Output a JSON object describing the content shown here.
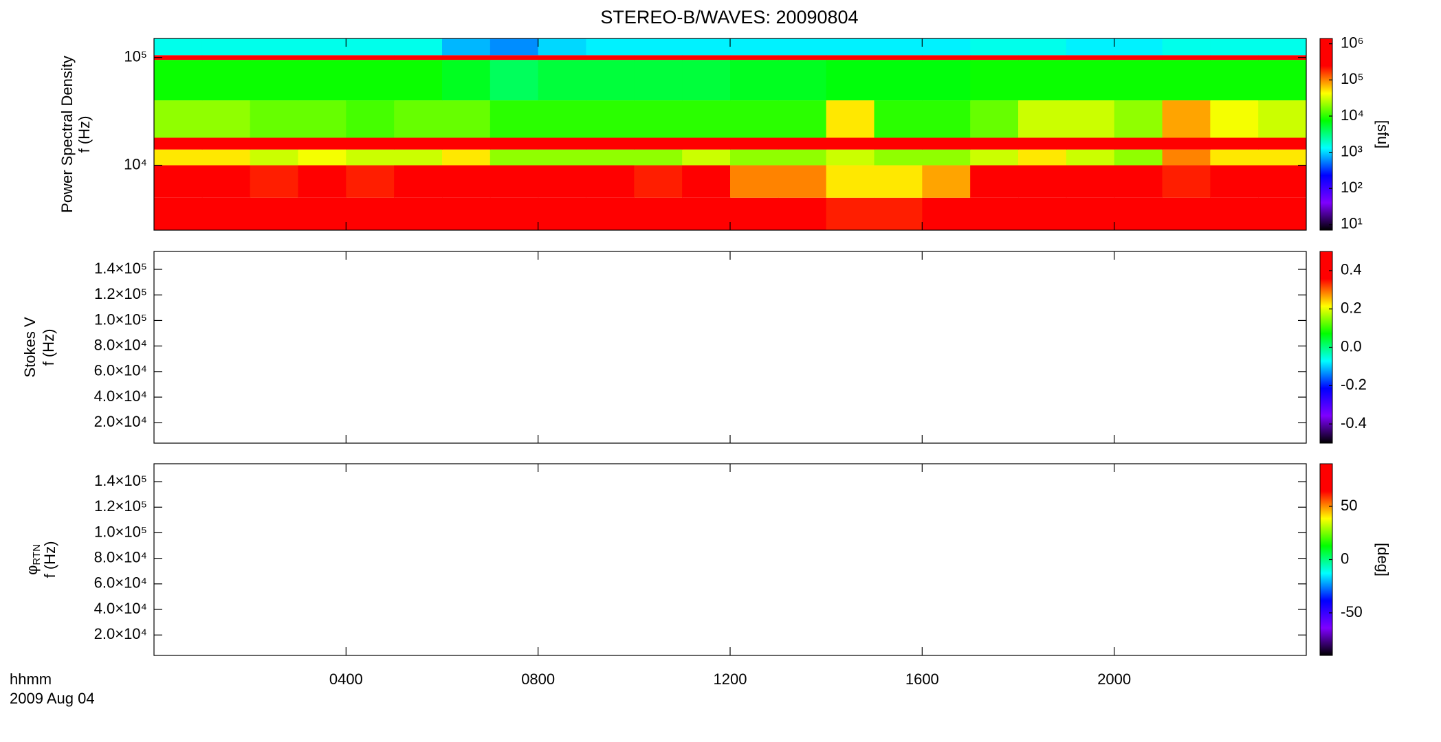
{
  "title": "STEREO-B/WAVES: 20090804",
  "x_label": "hhmm",
  "date_label": "2009 Aug 04",
  "chart_data": [
    {
      "type": "heatmap",
      "ylabel": "Power Spectral Density",
      "ylabel2": "f (Hz)",
      "ylog": true,
      "ylim": [
        2500,
        150000
      ],
      "yticks": [
        {
          "value": 10000,
          "label": "10⁴"
        },
        {
          "value": 100000,
          "label": "10⁵"
        }
      ],
      "x_edges": [
        0,
        1,
        2,
        3,
        4,
        5,
        6,
        7,
        8,
        9,
        10,
        11,
        12,
        13,
        14,
        15,
        16,
        17,
        18,
        19,
        20,
        21,
        22,
        23,
        24
      ],
      "y_edges": [
        2500,
        5000,
        10000,
        14000,
        18000,
        40000,
        95000,
        105000,
        150000
      ],
      "z": [
        [
          1000000,
          1000000,
          1000000,
          1000000,
          1000000,
          1000000,
          1000000,
          1000000,
          1000000,
          1000000,
          1000000,
          1000000,
          1000000,
          300000,
          200000,
          200000,
          300000,
          1000000,
          1000000,
          1000000,
          1000000,
          1000000,
          1000000,
          1000000
        ],
        [
          300000,
          300000,
          200000,
          300000,
          200000,
          300000,
          1000000,
          1000000,
          1000000,
          300000,
          200000,
          300000,
          100000,
          100000,
          50000,
          50000,
          80000,
          300000,
          1000000,
          300000,
          300000,
          200000,
          1000000,
          500000
        ],
        [
          50000,
          50000,
          30000,
          40000,
          30000,
          30000,
          50000,
          20000,
          20000,
          20000,
          20000,
          30000,
          20000,
          20000,
          30000,
          20000,
          20000,
          30000,
          50000,
          30000,
          20000,
          100000,
          50000,
          50000
        ],
        [
          1000000,
          1000000,
          1000000,
          1000000,
          1000000,
          1000000,
          1000000,
          1000000,
          1000000,
          1000000,
          1000000,
          1000000,
          1000000,
          1000000,
          1000000,
          1000000,
          1000000,
          1000000,
          1000000,
          1000000,
          1000000,
          1000000,
          1000000,
          1000000
        ],
        [
          20000,
          20000,
          15000,
          15000,
          12000,
          15000,
          15000,
          10000,
          10000,
          10000,
          10000,
          10000,
          10000,
          10000,
          50000,
          10000,
          10000,
          15000,
          30000,
          30000,
          20000,
          80000,
          40000,
          30000
        ],
        [
          8000,
          8000,
          8000,
          8000,
          8000,
          8000,
          6000,
          4000,
          5000,
          5000,
          5000,
          5000,
          6000,
          6000,
          7000,
          7000,
          7000,
          8000,
          8000,
          8000,
          8000,
          8000,
          8000,
          8000
        ],
        [
          1000000,
          1000000,
          1000000,
          1000000,
          1000000,
          1000000,
          1000000,
          1000000,
          1000000,
          1000000,
          1000000,
          1000000,
          1000000,
          1000000,
          1000000,
          1000000,
          1000000,
          1000000,
          1000000,
          1000000,
          1000000,
          1000000,
          1000000,
          1000000
        ],
        [
          1500,
          1500,
          1500,
          1500,
          1500,
          1500,
          800,
          600,
          1000,
          1200,
          1200,
          1200,
          1200,
          1200,
          1200,
          1200,
          1200,
          1500,
          1500,
          1200,
          1200,
          1500,
          1500,
          1500
        ]
      ],
      "zlog": true,
      "zlim": [
        7,
        1400000
      ],
      "zticks": [
        {
          "value": 10,
          "label": "10¹"
        },
        {
          "value": 100,
          "label": "10²"
        },
        {
          "value": 1000,
          "label": "10³"
        },
        {
          "value": 10000,
          "label": "10⁴"
        },
        {
          "value": 100000,
          "label": "10⁵"
        },
        {
          "value": 1000000,
          "label": "10⁶"
        }
      ],
      "zlabel": "[sfu]",
      "colormap": [
        "#000000",
        "#7f00ff",
        "#0000ff",
        "#00ffff",
        "#00ff00",
        "#ffff00",
        "#ff0000",
        "#ff0000"
      ]
    },
    {
      "type": "heatmap",
      "ylabel": "Stokes V",
      "ylabel2": "f (Hz)",
      "ylog": false,
      "ylim": [
        4000,
        154000
      ],
      "yticks": [
        {
          "value": 20000,
          "label": "2.0×10⁴"
        },
        {
          "value": 40000,
          "label": "4.0×10⁴"
        },
        {
          "value": 60000,
          "label": "6.0×10⁴"
        },
        {
          "value": 80000,
          "label": "8.0×10⁴"
        },
        {
          "value": 100000,
          "label": "1.0×10⁵"
        },
        {
          "value": 120000,
          "label": "1.2×10⁵"
        },
        {
          "value": 140000,
          "label": "1.4×10⁵"
        }
      ],
      "zlog": false,
      "zlim": [
        -0.5,
        0.5
      ],
      "zticks": [
        -0.4,
        -0.2,
        {
          "value": 0,
          "label": "0.0"
        },
        0.2,
        0.4
      ]
    },
    {
      "type": "heatmap",
      "ylabel": "φ",
      "ylabel_sub": "RTN",
      "ylabel2": "f (Hz)",
      "ylog": false,
      "ylim": [
        4000,
        154000
      ],
      "yticks": [
        {
          "value": 20000,
          "label": "2.0×10⁴"
        },
        {
          "value": 40000,
          "label": "4.0×10⁴"
        },
        {
          "value": 60000,
          "label": "6.0×10⁴"
        },
        {
          "value": 80000,
          "label": "8.0×10⁴"
        },
        {
          "value": 100000,
          "label": "1.0×10⁵"
        },
        {
          "value": 120000,
          "label": "1.2×10⁵"
        },
        {
          "value": 140000,
          "label": "1.4×10⁵"
        }
      ],
      "zlog": false,
      "zlim": [
        -90,
        90
      ],
      "zticks": [
        -50,
        0,
        50
      ],
      "zlabel": "[deg]",
      "xlim": [
        0,
        24
      ],
      "xticks": [
        {
          "value": 4,
          "label": "0400"
        },
        {
          "value": 8,
          "label": "0800"
        },
        {
          "value": 12,
          "label": "1200"
        },
        {
          "value": 16,
          "label": "1600"
        },
        {
          "value": 20,
          "label": "2000"
        }
      ]
    }
  ]
}
